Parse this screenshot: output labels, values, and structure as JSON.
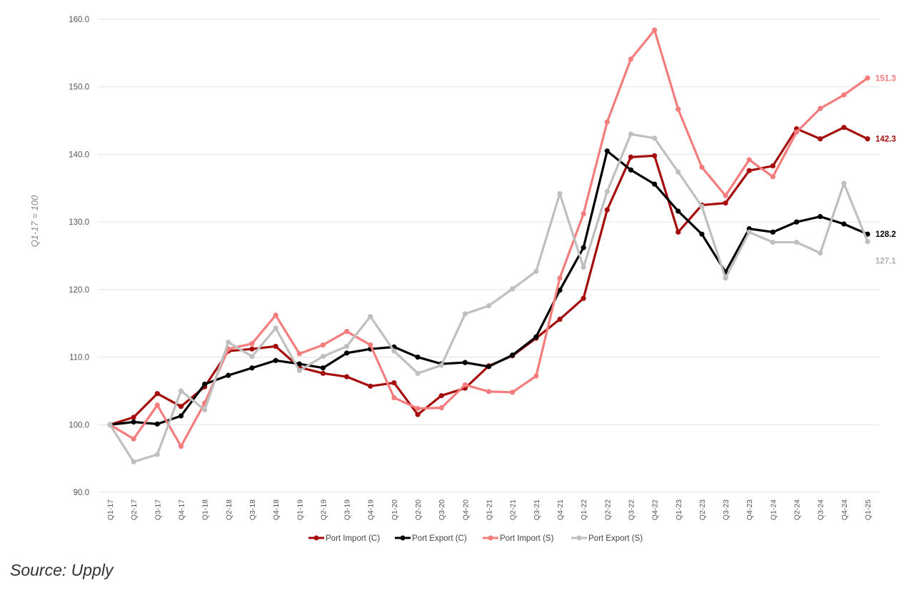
{
  "chart_data": {
    "type": "line",
    "ylabel": "Q1-17 = 100",
    "ylim": [
      90,
      160
    ],
    "yticks": [
      "90.0",
      "100.0",
      "110.0",
      "120.0",
      "130.0",
      "140.0",
      "150.0",
      "160.0"
    ],
    "grid": true,
    "legend_position": "bottom",
    "categories": [
      "Q1-17",
      "Q2-17",
      "Q3-17",
      "Q4-17",
      "Q1-18",
      "Q2-18",
      "Q3-18",
      "Q4-18",
      "Q1-19",
      "Q2-19",
      "Q3-19",
      "Q4-19",
      "Q1-20",
      "Q2-20",
      "Q3-20",
      "Q4-20",
      "Q1-21",
      "Q2-21",
      "Q3-21",
      "Q4-21",
      "Q1-22",
      "Q2-22",
      "Q3-22",
      "Q4-22",
      "Q1-23",
      "Q2-23",
      "Q3-23",
      "Q4-23",
      "Q1-24",
      "Q2-24",
      "Q3-24",
      "Q4-24",
      "Q1-25"
    ],
    "series": [
      {
        "name": "Port Import (C)",
        "color": "#a50d0d",
        "end_label": "142.3",
        "values": [
          100.0,
          101.1,
          104.6,
          102.7,
          105.6,
          110.9,
          111.2,
          111.6,
          108.5,
          107.6,
          107.1,
          105.7,
          106.2,
          101.5,
          104.3,
          105.4,
          108.7,
          110.2,
          112.8,
          115.6,
          118.7,
          131.8,
          139.6,
          139.8,
          128.5,
          132.5,
          132.8,
          137.6,
          138.3,
          143.8,
          142.3,
          144.0,
          142.3
        ]
      },
      {
        "name": "Port Export (C)",
        "color": "#000000",
        "end_label": "128.2",
        "values": [
          100.0,
          100.4,
          100.1,
          101.3,
          106.0,
          107.3,
          108.4,
          109.5,
          109.0,
          108.4,
          110.6,
          111.2,
          111.5,
          110.0,
          109.0,
          109.2,
          108.6,
          110.3,
          113.0,
          119.9,
          126.2,
          140.5,
          137.7,
          135.6,
          131.6,
          128.2,
          122.6,
          129.0,
          128.5,
          130.0,
          130.8,
          129.7,
          128.2
        ]
      },
      {
        "name": "Port Import (S)",
        "color": "#f57c7c",
        "end_label": "151.3",
        "values": [
          100.0,
          97.9,
          102.9,
          96.8,
          103.2,
          111.2,
          112.0,
          116.2,
          110.5,
          111.8,
          113.8,
          111.8,
          104.0,
          102.4,
          102.5,
          105.9,
          104.9,
          104.8,
          107.2,
          121.7,
          131.2,
          144.8,
          154.1,
          158.4,
          146.7,
          138.1,
          133.9,
          139.2,
          136.7,
          143.3,
          146.8,
          148.8,
          151.3
        ]
      },
      {
        "name": "Port Export (S)",
        "color": "#bfbfbf",
        "end_label": "127.1",
        "values": [
          100.0,
          94.5,
          95.6,
          105.0,
          102.2,
          112.2,
          110.1,
          114.3,
          108.0,
          110.1,
          111.6,
          116.0,
          110.9,
          107.6,
          108.8,
          116.4,
          117.6,
          120.1,
          122.7,
          134.2,
          123.3,
          134.5,
          143.0,
          142.4,
          137.4,
          132.3,
          121.7,
          128.5,
          127.0,
          127.0,
          125.4,
          135.7,
          127.1
        ]
      }
    ]
  },
  "source_note": "Source: Upply"
}
